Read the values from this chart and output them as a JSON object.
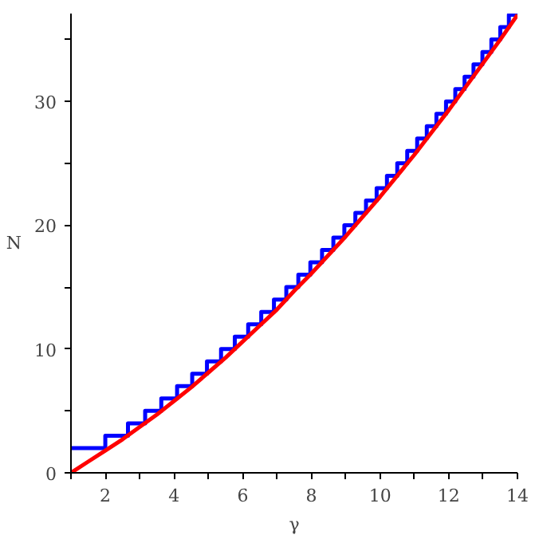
{
  "chart_data": {
    "type": "line",
    "xlabel": "γ",
    "ylabel": "N",
    "xlim": [
      1,
      14
    ],
    "ylim": [
      0,
      37.1
    ],
    "xticks": [
      {
        "value": 1,
        "label": null
      },
      2,
      {
        "value": 3,
        "label": null
      },
      4,
      {
        "value": 5,
        "label": null
      },
      6,
      {
        "value": 7,
        "label": null
      },
      8,
      {
        "value": 9,
        "label": null
      },
      10,
      {
        "value": 11,
        "label": null
      },
      12,
      {
        "value": 13,
        "label": null
      },
      14
    ],
    "yticks": [
      0,
      {
        "value": 5,
        "label": null
      },
      10,
      {
        "value": 15,
        "label": null
      },
      20,
      {
        "value": 25,
        "label": null
      },
      30,
      {
        "value": 35,
        "label": null
      }
    ],
    "grid": false,
    "series": [
      {
        "type": "step",
        "color": "#0000ff",
        "x": [
          1,
          2,
          2.66,
          3.16,
          3.63,
          4.09,
          4.53,
          4.96,
          5.37,
          5.77,
          6.16,
          6.54,
          6.91,
          7.27,
          7.62,
          7.97,
          8.31,
          8.64,
          8.96,
          9.28,
          9.59,
          9.9,
          10.2,
          10.5,
          10.79,
          11.08,
          11.36,
          11.64,
          11.92,
          12.19,
          12.46,
          12.72,
          12.98,
          13.24,
          13.5,
          13.75,
          14
        ],
        "values": [
          2,
          3,
          4,
          5,
          6,
          7,
          8,
          9,
          10,
          11,
          12,
          13,
          14,
          15,
          16,
          17,
          18,
          19,
          20,
          21,
          22,
          23,
          24,
          25,
          26,
          27,
          28,
          29,
          30,
          31,
          32,
          33,
          34,
          35,
          36,
          37,
          37
        ]
      },
      {
        "color": "#ff0000",
        "x": [
          1,
          1.5,
          2,
          2.5,
          3,
          3.5,
          4,
          4.5,
          5,
          5.5,
          6,
          6.5,
          7,
          7.5,
          8,
          8.5,
          9,
          9.5,
          10,
          10.5,
          11,
          11.5,
          12,
          12.5,
          13,
          13.5,
          14
        ],
        "values": [
          0,
          0.9,
          1.8,
          2.7,
          3.7,
          4.7,
          5.8,
          6.9,
          8.1,
          9.3,
          10.6,
          11.9,
          13.2,
          14.7,
          16.1,
          17.6,
          19.1,
          20.7,
          22.3,
          24,
          25.7,
          27.5,
          29.3,
          31.2,
          33.1,
          35,
          37
        ]
      }
    ]
  }
}
